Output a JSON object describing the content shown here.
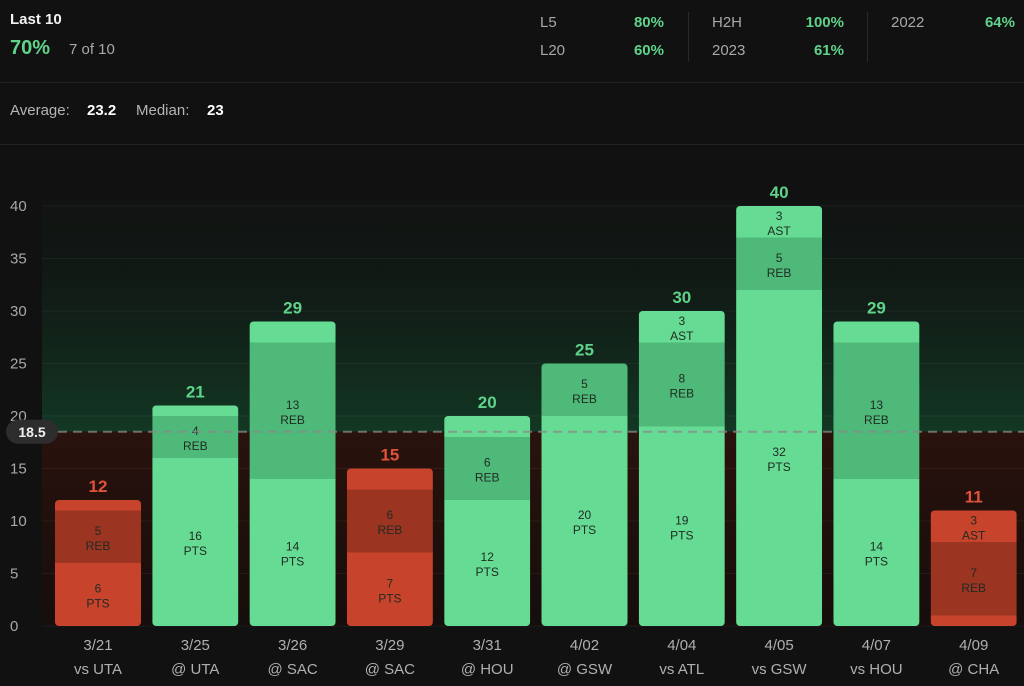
{
  "header": {
    "title": "Last 10",
    "hit_rate": "70%",
    "hit_count": "7 of 10",
    "stats": [
      {
        "label": "L5",
        "value": "80%"
      },
      {
        "label": "L20",
        "value": "60%"
      },
      {
        "label": "H2H",
        "value": "100%"
      },
      {
        "label": "2023",
        "value": "61%"
      },
      {
        "label": "2022",
        "value": "64%"
      }
    ]
  },
  "summary": {
    "average_label": "Average:",
    "average_value": "23.2",
    "median_label": "Median:",
    "median_value": "23"
  },
  "colors": {
    "hit": "#66db93",
    "miss": "#c8432b",
    "hit_text": "#5fd38a",
    "miss_text": "#e0533a"
  },
  "chart_data": {
    "type": "bar",
    "stacked": true,
    "ylim": [
      0,
      40
    ],
    "yticks": [
      0,
      5,
      10,
      15,
      20,
      25,
      30,
      35,
      40
    ],
    "line": {
      "value": 18.5,
      "label": "18.5"
    },
    "categories": [
      {
        "date": "3/21",
        "opp": "vs UTA"
      },
      {
        "date": "3/25",
        "opp": "@ UTA"
      },
      {
        "date": "3/26",
        "opp": "@ SAC"
      },
      {
        "date": "3/29",
        "opp": "@ SAC"
      },
      {
        "date": "3/31",
        "opp": "@ HOU"
      },
      {
        "date": "4/02",
        "opp": "@ GSW"
      },
      {
        "date": "4/04",
        "opp": "vs ATL"
      },
      {
        "date": "4/05",
        "opp": "vs GSW"
      },
      {
        "date": "4/07",
        "opp": "vs HOU"
      },
      {
        "date": "4/09",
        "opp": "@ CHA"
      }
    ],
    "totals": [
      12,
      21,
      29,
      15,
      20,
      25,
      30,
      40,
      29,
      11
    ],
    "series": [
      {
        "name": "PTS",
        "values": [
          6,
          16,
          14,
          7,
          12,
          20,
          19,
          32,
          14,
          1
        ]
      },
      {
        "name": "REB",
        "values": [
          5,
          4,
          13,
          6,
          6,
          5,
          8,
          5,
          13,
          7
        ]
      },
      {
        "name": "AST",
        "values": [
          1,
          1,
          2,
          2,
          2,
          0,
          3,
          3,
          2,
          3
        ]
      }
    ],
    "segment_labels": [
      [
        {
          "v": "6",
          "n": "PTS"
        },
        {
          "v": "5",
          "n": "REB"
        },
        null
      ],
      [
        {
          "v": "16",
          "n": "PTS"
        },
        {
          "v": "4",
          "n": "REB"
        },
        null
      ],
      [
        {
          "v": "14",
          "n": "PTS"
        },
        {
          "v": "13",
          "n": "REB"
        },
        null
      ],
      [
        {
          "v": "7",
          "n": "PTS"
        },
        {
          "v": "6",
          "n": "REB"
        },
        null
      ],
      [
        {
          "v": "12",
          "n": "PTS"
        },
        {
          "v": "6",
          "n": "REB"
        },
        null
      ],
      [
        {
          "v": "20",
          "n": "PTS"
        },
        {
          "v": "5",
          "n": "REB"
        },
        null
      ],
      [
        {
          "v": "19",
          "n": "PTS"
        },
        {
          "v": "8",
          "n": "REB"
        },
        {
          "v": "3",
          "n": "AST"
        }
      ],
      [
        {
          "v": "32",
          "n": "PTS"
        },
        {
          "v": "5",
          "n": "REB"
        },
        {
          "v": "3",
          "n": "AST"
        }
      ],
      [
        {
          "v": "14",
          "n": "PTS"
        },
        {
          "v": "13",
          "n": "REB"
        },
        null
      ],
      [
        null,
        {
          "v": "7",
          "n": "REB"
        },
        {
          "v": "3",
          "n": "AST"
        }
      ]
    ]
  }
}
